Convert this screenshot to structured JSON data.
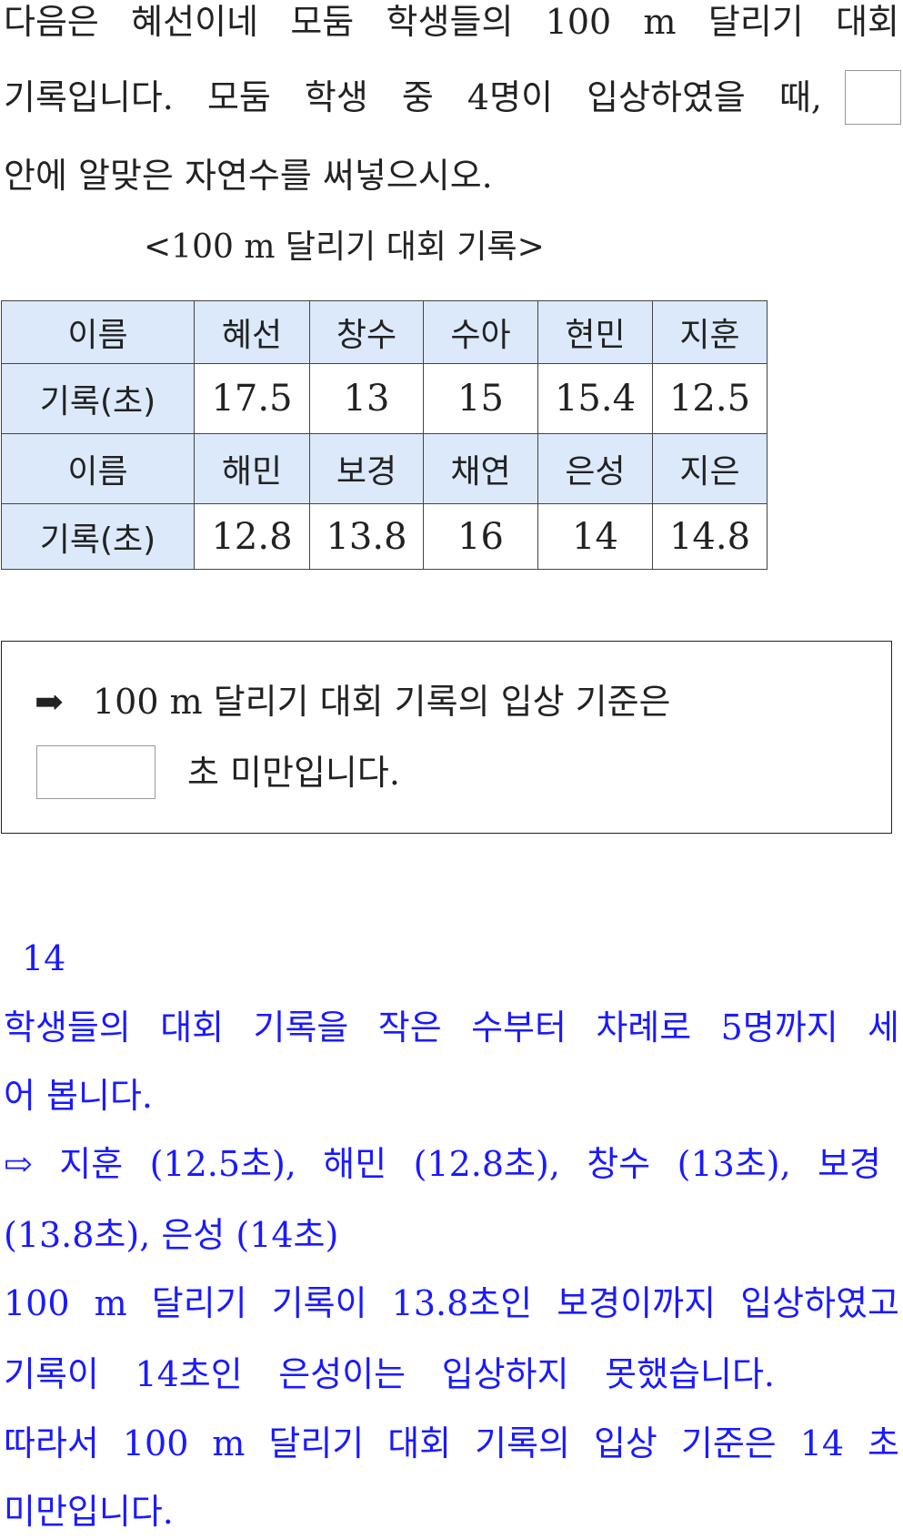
{
  "question": {
    "lines": [
      "다음은 혜선이네 모둠 학생들의 100 m 달리기 대회",
      "기록입니다. 모둠 학생 중 4명이 입상하였을 때,",
      "안에 알맞은 자연수를 써넣으시오."
    ],
    "caption": "<100 m 달리기 대회 기록>"
  },
  "table": {
    "rows": [
      [
        "이름",
        "혜선",
        "창수",
        "수아",
        "현민",
        "지훈"
      ],
      [
        "기록(초)",
        "17.5",
        "13",
        "15",
        "15.4",
        "12.5"
      ],
      [
        "이름",
        "해민",
        "보경",
        "채연",
        "은성",
        "지은"
      ],
      [
        "기록(초)",
        "12.8",
        "13.8",
        "16",
        "14",
        "14.8"
      ]
    ]
  },
  "answer_box": {
    "arrow": "➡",
    "line1": "100 m 달리기 대회 기록의 입상 기준은",
    "line2": "초 미만입니다.",
    "input_value": ""
  },
  "solution": {
    "answer": "14",
    "lines": [
      "학생들의 대회 기록을 작은 수부터 차례로 5명까지 세",
      "어 봅니다.",
      "⇨ 지훈 (12.5초), 해민 (12.8초), 창수 (13초), 보경",
      "(13.8초), 은성 (14초)",
      "100 m 달리기 기록이 13.8초인 보경이까지 입상하였고",
      "기록이 14초인 은성이는 입상하지 못했습니다.",
      "따라서 100 m 달리기 대회 기록의 입상 기준은 14 초",
      "미만입니다."
    ],
    "color": "#1a1aff"
  }
}
